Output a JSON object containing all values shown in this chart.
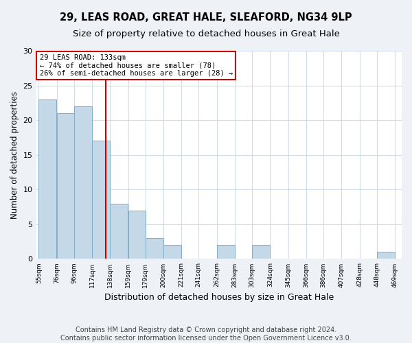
{
  "title1": "29, LEAS ROAD, GREAT HALE, SLEAFORD, NG34 9LP",
  "title2": "Size of property relative to detached houses in Great Hale",
  "xlabel": "Distribution of detached houses by size in Great Hale",
  "ylabel": "Number of detached properties",
  "bin_edges": [
    55,
    76,
    96,
    117,
    138,
    159,
    179,
    200,
    221,
    241,
    262,
    283,
    303,
    324,
    345,
    366,
    386,
    407,
    428,
    448,
    469
  ],
  "bar_heights": [
    23,
    21,
    22,
    17,
    8,
    7,
    3,
    2,
    0,
    0,
    2,
    0,
    2,
    0,
    0,
    0,
    0,
    0,
    0,
    1
  ],
  "bar_color": "#c5d8e8",
  "bar_edge_color": "#7faecb",
  "vline_x": 133,
  "vline_color": "#cc0000",
  "annotation_text": "29 LEAS ROAD: 133sqm\n← 74% of detached houses are smaller (78)\n26% of semi-detached houses are larger (28) →",
  "annotation_box_color": "#ffffff",
  "annotation_box_edge_color": "#cc0000",
  "ylim": [
    0,
    30
  ],
  "yticks": [
    0,
    5,
    10,
    15,
    20,
    25,
    30
  ],
  "tick_labels": [
    "55sqm",
    "76sqm",
    "96sqm",
    "117sqm",
    "138sqm",
    "159sqm",
    "179sqm",
    "200sqm",
    "221sqm",
    "241sqm",
    "262sqm",
    "283sqm",
    "303sqm",
    "324sqm",
    "345sqm",
    "366sqm",
    "386sqm",
    "407sqm",
    "428sqm",
    "448sqm",
    "469sqm"
  ],
  "footer": "Contains HM Land Registry data © Crown copyright and database right 2024.\nContains public sector information licensed under the Open Government Licence v3.0.",
  "bg_color": "#eef2f7",
  "plot_bg_color": "#ffffff",
  "grid_color": "#d0dcea",
  "title1_fontsize": 10.5,
  "title2_fontsize": 9.5,
  "xlabel_fontsize": 9,
  "ylabel_fontsize": 8.5,
  "footer_fontsize": 7,
  "tick_fontsize": 6.5,
  "ytick_fontsize": 8
}
